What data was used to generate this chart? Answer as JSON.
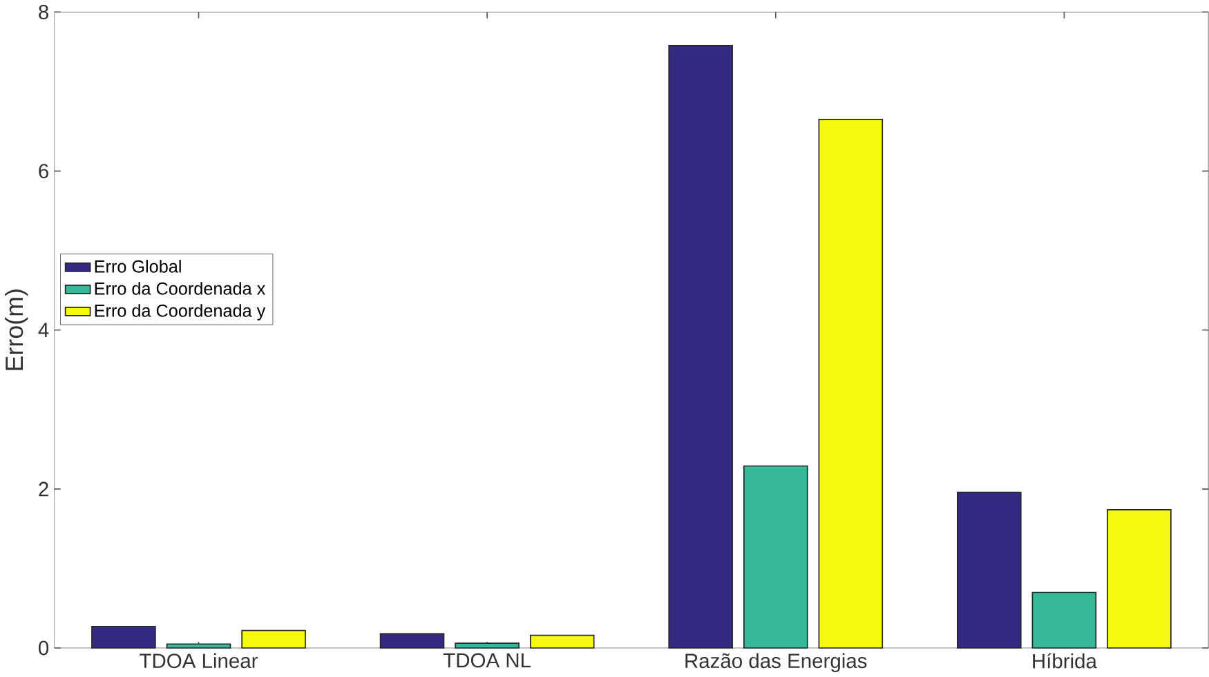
{
  "chart_data": {
    "type": "bar",
    "ylabel": "Erro(m)",
    "categories": [
      "TDOA Linear",
      "TDOA NL",
      "Razão das Energias",
      "Híbrida"
    ],
    "series": [
      {
        "name": "Erro Global",
        "color": "#332a82",
        "values": [
          0.27,
          0.18,
          7.58,
          1.96
        ]
      },
      {
        "name": "Erro da Coordenada x",
        "color": "#37b89a",
        "values": [
          0.05,
          0.06,
          2.29,
          0.7
        ]
      },
      {
        "name": "Erro da Coordenada y",
        "color": "#f5f90f",
        "values": [
          0.22,
          0.16,
          6.65,
          1.74
        ]
      }
    ],
    "ylim": [
      0,
      8
    ],
    "yticks": [
      0,
      2,
      4,
      6,
      8
    ],
    "grid": false,
    "legend": "left"
  }
}
